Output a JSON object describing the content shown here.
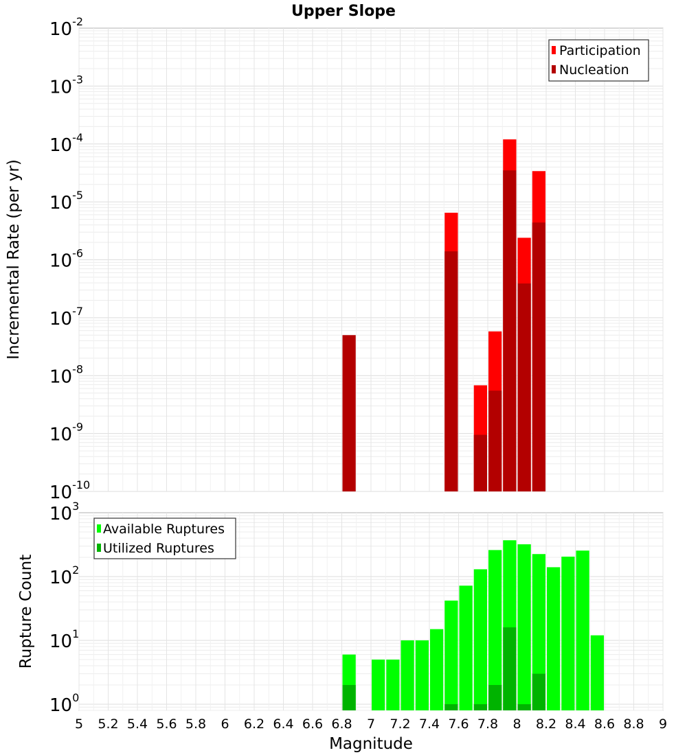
{
  "chart_data": [
    {
      "type": "bar",
      "title": "Upper Slope",
      "ylabel": "Incremental Rate (per yr)",
      "yscale": "log",
      "ylim": [
        1e-10,
        0.01
      ],
      "xlim": [
        5,
        9
      ],
      "grid": true,
      "legend_position": "top-right",
      "bar_width": 0.1,
      "series": [
        {
          "name": "Participation",
          "color": "#ff0000",
          "x": [
            7.55,
            7.75,
            7.85,
            7.95,
            8.05,
            8.15
          ],
          "values": [
            6.5e-06,
            6.8e-09,
            5.8e-08,
            0.00012,
            2.4e-06,
            3.4e-05
          ]
        },
        {
          "name": "Nucleation",
          "color": "#b30000",
          "x": [
            6.85,
            7.55,
            7.75,
            7.85,
            7.95,
            8.05,
            8.15
          ],
          "values": [
            5e-08,
            1.4e-06,
            9.5e-10,
            5.5e-09,
            3.5e-05,
            3.9e-07,
            4.4e-06
          ]
        }
      ]
    },
    {
      "type": "bar",
      "xlabel": "Magnitude",
      "ylabel": "Rupture Count",
      "yscale": "log",
      "ylim": [
        0.8,
        1000
      ],
      "xlim": [
        5,
        9
      ],
      "grid": true,
      "legend_position": "top-left",
      "bar_width": 0.1,
      "x_ticks": [
        "5",
        "5.2",
        "5.4",
        "5.6",
        "5.8",
        "6",
        "6.2",
        "6.4",
        "6.6",
        "6.8",
        "7",
        "7.2",
        "7.4",
        "7.6",
        "7.8",
        "8",
        "8.2",
        "8.4",
        "8.6",
        "8.8",
        "9"
      ],
      "series": [
        {
          "name": "Available Ruptures",
          "color": "#00ff00",
          "x": [
            6.85,
            7.05,
            7.15,
            7.25,
            7.35,
            7.45,
            7.55,
            7.65,
            7.75,
            7.85,
            7.95,
            8.05,
            8.15,
            8.25,
            8.35,
            8.45,
            8.55
          ],
          "values": [
            6,
            5,
            5,
            10,
            10,
            15,
            42,
            72,
            130,
            260,
            370,
            320,
            225,
            140,
            205,
            255,
            12
          ]
        },
        {
          "name": "Utilized Ruptures",
          "color": "#00b300",
          "x": [
            6.85,
            7.55,
            7.75,
            7.85,
            7.95,
            8.05,
            8.15
          ],
          "values": [
            2,
            1,
            1,
            2,
            16,
            1,
            3
          ]
        }
      ]
    }
  ]
}
